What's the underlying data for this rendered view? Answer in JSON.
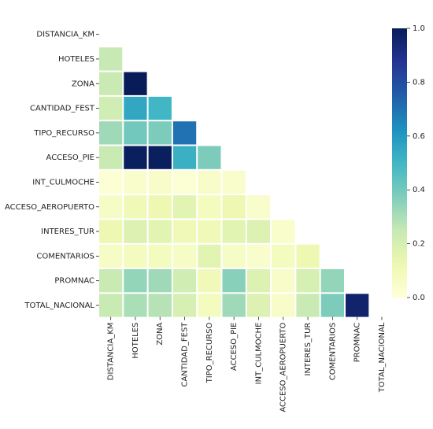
{
  "chart_data": {
    "type": "heatmap",
    "title": "",
    "xlabel": "",
    "ylabel": "",
    "mask": "upper-triangle",
    "colormap": "YlGnBu",
    "color_stops": [
      "#ffffd9",
      "#edf8b1",
      "#c7e9b4",
      "#7fcdbb",
      "#41b6c4",
      "#1d91c0",
      "#225ea8",
      "#253494",
      "#081d58"
    ],
    "row_labels": [
      "DISTANCIA_KM",
      "HOTELES",
      "ZONA",
      "CANTIDAD_FEST",
      "TIPO_RECURSO",
      "ACCESO_PIE",
      "INT_CULMOCHE",
      "ACCESO_AEROPUERTO",
      "INTERES_TUR",
      "COMENTARIOS",
      "PROMNAC",
      "TOTAL_NACIONAL"
    ],
    "col_labels": [
      "DISTANCIA_KM",
      "HOTELES",
      "ZONA",
      "CANTIDAD_FEST",
      "TIPO_RECURSO",
      "ACCESO_PIE",
      "INT_CULMOCHE",
      "ACCESO_AEROPUERTO",
      "INTERES_TUR",
      "COMENTARIOS",
      "PROMNAC",
      "TOTAL_NACIONAL"
    ],
    "values": [
      [],
      [
        0.25
      ],
      [
        0.24,
        1.0
      ],
      [
        0.22,
        0.55,
        0.5
      ],
      [
        0.32,
        0.4,
        0.38,
        0.7
      ],
      [
        0.24,
        0.99,
        0.99,
        0.52,
        0.38
      ],
      [
        0.02,
        0.04,
        0.05,
        0.02,
        0.05,
        0.04
      ],
      [
        0.06,
        0.1,
        0.12,
        0.16,
        0.08,
        0.12,
        0.04
      ],
      [
        0.12,
        0.18,
        0.16,
        0.1,
        0.1,
        0.16,
        0.18,
        0.04
      ],
      [
        0.06,
        0.08,
        0.08,
        0.06,
        0.16,
        0.06,
        0.04,
        0.08,
        0.12
      ],
      [
        0.24,
        0.34,
        0.32,
        0.22,
        0.1,
        0.36,
        0.18,
        0.05,
        0.2,
        0.34
      ],
      [
        0.24,
        0.3,
        0.28,
        0.2,
        0.08,
        0.32,
        0.18,
        0.05,
        0.24,
        0.38,
        0.96
      ]
    ],
    "colorbar": {
      "vmin": 0.0,
      "vmax": 1.0,
      "ticks": [
        "0.0",
        "0.2",
        "0.4",
        "0.6",
        "0.8",
        "1.0"
      ]
    }
  }
}
